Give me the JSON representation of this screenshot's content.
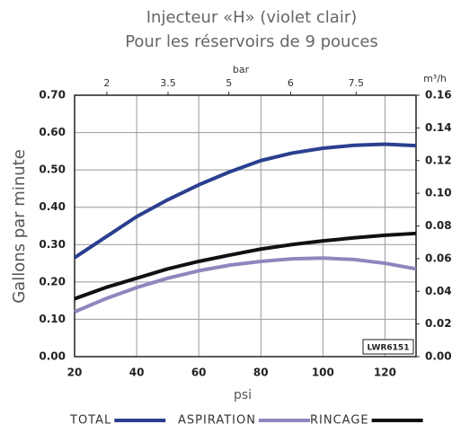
{
  "chart_data": {
    "type": "line",
    "title": [
      "Injecteur «H» (violet clair)",
      "Pour les réservoirs de 9 pouces"
    ],
    "x_label": "psi",
    "x2_label": "bar",
    "y_label": "Gallons par minute",
    "y2_label": "m³/h",
    "annotation": "LWR6151",
    "x": [
      20,
      30,
      40,
      50,
      60,
      70,
      80,
      90,
      100,
      110,
      120,
      130
    ],
    "series": [
      {
        "name": "TOTAL",
        "color": "#2b3f8f",
        "values": [
          0.265,
          0.32,
          0.375,
          0.42,
          0.46,
          0.495,
          0.525,
          0.545,
          0.558,
          0.566,
          0.569,
          0.565
        ]
      },
      {
        "name": "ASPIRATION",
        "color": "#8c87bd",
        "values": [
          0.12,
          0.155,
          0.185,
          0.21,
          0.23,
          0.245,
          0.255,
          0.262,
          0.264,
          0.26,
          0.25,
          0.235
        ]
      },
      {
        "name": "RINCAGE",
        "color": "#111111",
        "values": [
          0.155,
          0.185,
          0.21,
          0.235,
          0.255,
          0.272,
          0.288,
          0.3,
          0.31,
          0.318,
          0.325,
          0.33
        ]
      }
    ],
    "xlim": [
      20,
      130
    ],
    "xticks": [
      20,
      40,
      60,
      80,
      100,
      120
    ],
    "x2ticks": [
      {
        "value": 30.4,
        "label": "2"
      },
      {
        "value": 50.1,
        "label": "3.5"
      },
      {
        "value": 69.7,
        "label": "5"
      },
      {
        "value": 89.6,
        "label": "6"
      },
      {
        "value": 110.7,
        "label": "7.5"
      }
    ],
    "ylim": [
      0,
      0.7
    ],
    "yticks": [
      {
        "value": 0,
        "label": "0.00"
      },
      {
        "value": 0.1,
        "label": "0.10"
      },
      {
        "value": 0.2,
        "label": "0.20"
      },
      {
        "value": 0.3,
        "label": "0.30"
      },
      {
        "value": 0.4,
        "label": "0.40"
      },
      {
        "value": 0.5,
        "label": "0.50"
      },
      {
        "value": 0.6,
        "label": "0.60"
      },
      {
        "value": 0.7,
        "label": "0.70"
      }
    ],
    "y2lim": [
      0,
      0.16
    ],
    "y2ticks": [
      {
        "value": 0,
        "label": "0.00"
      },
      0.02,
      0.04,
      0.06,
      0.08,
      {
        "value": 0.1,
        "label": "0.10"
      },
      0.12,
      0.14,
      0.16
    ],
    "grid": true
  }
}
